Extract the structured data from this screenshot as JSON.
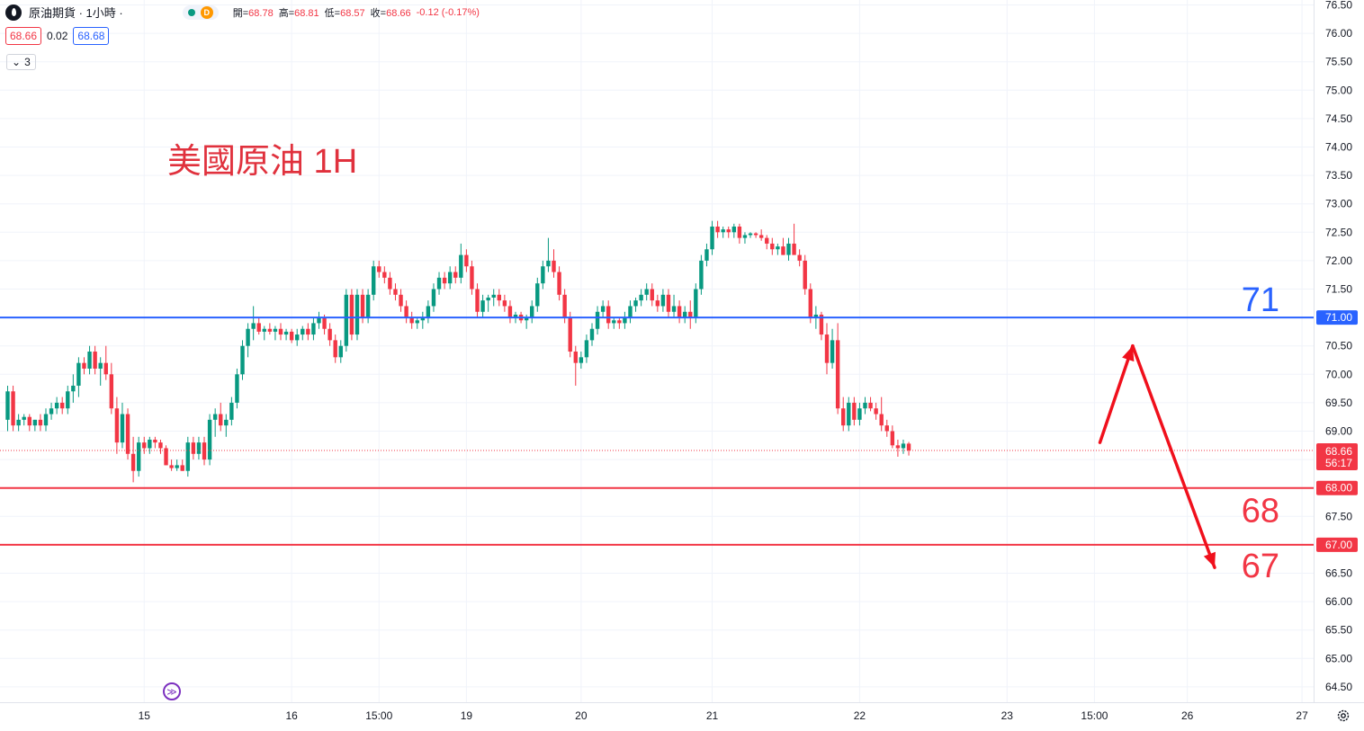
{
  "header": {
    "symbol_title": "原油期貨 · 1小時 ·",
    "delay_badge": "D",
    "ohlc": {
      "open_label": "開=",
      "open": "68.78",
      "high_label": "高=",
      "high": "68.81",
      "low_label": "低=",
      "low": "68.57",
      "close_label": "收=",
      "close": "68.66",
      "change": "-0.12 (-0.17%)"
    }
  },
  "trade": {
    "sell_price": "68.66",
    "spread": "0.02",
    "buy_price": "68.68"
  },
  "indicators": {
    "count": "3"
  },
  "annotation": {
    "title": "美國原油 1H"
  },
  "colors": {
    "up": "#089981",
    "down": "#f23645",
    "resistance": "#2962ff",
    "support": "#f23645",
    "arrow": "#f0101c"
  },
  "chart_data": {
    "type": "candlestick",
    "title": "美國原油 1H",
    "ylim": [
      64.3,
      76.6
    ],
    "y_ticks": [
      "64.50",
      "65.00",
      "65.50",
      "66.00",
      "66.50",
      "67.00",
      "67.50",
      "68.00",
      "68.50",
      "69.00",
      "69.50",
      "70.00",
      "70.50",
      "71.00",
      "71.50",
      "72.00",
      "72.50",
      "73.00",
      "73.50",
      "74.00",
      "74.50",
      "75.00",
      "75.50",
      "76.00",
      "76.50"
    ],
    "x_ticks": [
      {
        "label": "15",
        "bar": 25
      },
      {
        "label": "16",
        "bar": 52
      },
      {
        "label": "15:00",
        "bar": 68
      },
      {
        "label": "19",
        "bar": 84
      },
      {
        "label": "20",
        "bar": 105
      },
      {
        "label": "21",
        "bar": 129
      },
      {
        "label": "22",
        "bar": 156
      },
      {
        "label": "23",
        "bar": 183
      },
      {
        "label": "15:00",
        "bar": 199
      },
      {
        "label": "26",
        "bar": 216
      },
      {
        "label": "27",
        "bar": 237
      }
    ],
    "last_price": {
      "value": 68.66,
      "label": "68.66",
      "countdown": "56:17"
    },
    "horizontal_lines": [
      {
        "value": 71.0,
        "label": "71.00",
        "note": "71",
        "kind": "resistance"
      },
      {
        "value": 68.0,
        "label": "68.00",
        "note": "68",
        "kind": "support"
      },
      {
        "value": 67.0,
        "label": "67.00",
        "note": "67",
        "kind": "support"
      }
    ],
    "projection": [
      {
        "bar": 200,
        "value": 68.8
      },
      {
        "bar": 206,
        "value": 70.5
      },
      {
        "bar": 221,
        "value": 66.6
      }
    ],
    "ohlc_series": [
      [
        69.2,
        69.8,
        69.0,
        69.7
      ],
      [
        69.7,
        69.8,
        69.0,
        69.1
      ],
      [
        69.1,
        69.3,
        69.0,
        69.2
      ],
      [
        69.2,
        69.3,
        69.1,
        69.25
      ],
      [
        69.25,
        69.3,
        69.0,
        69.1
      ],
      [
        69.1,
        69.2,
        69.0,
        69.2
      ],
      [
        69.2,
        69.3,
        69.0,
        69.1
      ],
      [
        69.1,
        69.4,
        69.0,
        69.3
      ],
      [
        69.3,
        69.5,
        69.2,
        69.4
      ],
      [
        69.4,
        69.6,
        69.3,
        69.5
      ],
      [
        69.5,
        69.6,
        69.3,
        69.4
      ],
      [
        69.4,
        69.8,
        69.3,
        69.7
      ],
      [
        69.7,
        70.0,
        69.5,
        69.8
      ],
      [
        69.8,
        70.3,
        69.6,
        70.2
      ],
      [
        70.2,
        70.3,
        70.0,
        70.1
      ],
      [
        70.1,
        70.5,
        70.0,
        70.4
      ],
      [
        70.4,
        70.5,
        70.0,
        70.1
      ],
      [
        70.1,
        70.3,
        69.8,
        70.2
      ],
      [
        70.2,
        70.5,
        69.9,
        70.0
      ],
      [
        70.0,
        70.2,
        69.3,
        69.4
      ],
      [
        69.4,
        69.6,
        68.6,
        68.8
      ],
      [
        68.8,
        69.5,
        68.7,
        69.3
      ],
      [
        69.3,
        69.4,
        68.5,
        68.6
      ],
      [
        68.6,
        68.9,
        68.1,
        68.3
      ],
      [
        68.3,
        68.9,
        68.2,
        68.8
      ],
      [
        68.8,
        68.9,
        68.6,
        68.7
      ],
      [
        68.7,
        68.9,
        68.6,
        68.85
      ],
      [
        68.85,
        68.9,
        68.7,
        68.8
      ],
      [
        68.8,
        68.85,
        68.6,
        68.7
      ],
      [
        68.7,
        68.75,
        68.4,
        68.4
      ],
      [
        68.4,
        68.5,
        68.3,
        68.35
      ],
      [
        68.35,
        68.5,
        68.3,
        68.4
      ],
      [
        68.4,
        68.5,
        68.3,
        68.3
      ],
      [
        68.3,
        68.9,
        68.2,
        68.8
      ],
      [
        68.8,
        68.9,
        68.5,
        68.6
      ],
      [
        68.6,
        68.9,
        68.5,
        68.8
      ],
      [
        68.8,
        68.9,
        68.4,
        68.5
      ],
      [
        68.5,
        69.3,
        68.4,
        69.2
      ],
      [
        69.2,
        69.4,
        68.9,
        69.3
      ],
      [
        69.3,
        69.5,
        69.0,
        69.1
      ],
      [
        69.1,
        69.3,
        68.9,
        69.2
      ],
      [
        69.2,
        69.6,
        69.1,
        69.5
      ],
      [
        69.5,
        70.1,
        69.4,
        70.0
      ],
      [
        70.0,
        70.6,
        69.9,
        70.5
      ],
      [
        70.5,
        70.9,
        70.3,
        70.8
      ],
      [
        70.8,
        71.2,
        70.6,
        70.9
      ],
      [
        70.9,
        71.0,
        70.7,
        70.75
      ],
      [
        70.75,
        70.85,
        70.6,
        70.8
      ],
      [
        70.8,
        70.9,
        70.7,
        70.75
      ],
      [
        70.75,
        70.85,
        70.6,
        70.8
      ],
      [
        70.8,
        70.9,
        70.6,
        70.7
      ],
      [
        70.7,
        70.8,
        70.6,
        70.75
      ],
      [
        70.75,
        70.8,
        70.55,
        70.6
      ],
      [
        70.6,
        70.8,
        70.5,
        70.7
      ],
      [
        70.7,
        70.85,
        70.6,
        70.8
      ],
      [
        70.8,
        70.9,
        70.6,
        70.7
      ],
      [
        70.7,
        71.0,
        70.6,
        70.9
      ],
      [
        70.9,
        71.1,
        70.8,
        71.0
      ],
      [
        71.0,
        71.05,
        70.7,
        70.8
      ],
      [
        70.8,
        70.9,
        70.5,
        70.6
      ],
      [
        70.6,
        70.7,
        70.2,
        70.3
      ],
      [
        70.3,
        70.6,
        70.2,
        70.5
      ],
      [
        70.5,
        71.5,
        70.4,
        71.4
      ],
      [
        71.4,
        71.5,
        70.6,
        70.7
      ],
      [
        70.7,
        71.5,
        70.6,
        71.4
      ],
      [
        71.4,
        71.5,
        70.9,
        71.0
      ],
      [
        71.0,
        71.5,
        70.9,
        71.4
      ],
      [
        71.4,
        72.0,
        71.3,
        71.9
      ],
      [
        71.9,
        72.0,
        71.7,
        71.8
      ],
      [
        71.8,
        71.9,
        71.6,
        71.7
      ],
      [
        71.7,
        71.8,
        71.4,
        71.5
      ],
      [
        71.5,
        71.6,
        71.3,
        71.4
      ],
      [
        71.4,
        71.5,
        71.1,
        71.2
      ],
      [
        71.2,
        71.3,
        70.9,
        71.0
      ],
      [
        71.0,
        71.1,
        70.8,
        70.9
      ],
      [
        70.9,
        71.0,
        70.8,
        70.95
      ],
      [
        70.95,
        71.1,
        70.8,
        71.0
      ],
      [
        71.0,
        71.3,
        70.9,
        71.2
      ],
      [
        71.2,
        71.6,
        71.1,
        71.5
      ],
      [
        71.5,
        71.8,
        71.4,
        71.7
      ],
      [
        71.7,
        71.8,
        71.5,
        71.6
      ],
      [
        71.6,
        71.9,
        71.5,
        71.8
      ],
      [
        71.8,
        71.9,
        71.6,
        71.7
      ],
      [
        71.7,
        72.3,
        71.6,
        72.1
      ],
      [
        72.1,
        72.2,
        71.8,
        71.9
      ],
      [
        71.9,
        72.0,
        71.4,
        71.5
      ],
      [
        71.5,
        71.6,
        71.0,
        71.1
      ],
      [
        71.1,
        71.4,
        71.0,
        71.3
      ],
      [
        71.3,
        71.4,
        71.1,
        71.35
      ],
      [
        71.35,
        71.5,
        71.2,
        71.4
      ],
      [
        71.4,
        71.5,
        71.2,
        71.3
      ],
      [
        71.3,
        71.4,
        71.1,
        71.2
      ],
      [
        71.2,
        71.3,
        70.9,
        71.0
      ],
      [
        71.0,
        71.1,
        70.9,
        71.05
      ],
      [
        71.05,
        71.1,
        70.9,
        70.95
      ],
      [
        70.95,
        71.05,
        70.8,
        71.0
      ],
      [
        71.0,
        71.3,
        70.9,
        71.2
      ],
      [
        71.2,
        71.7,
        71.1,
        71.6
      ],
      [
        71.6,
        72.0,
        71.5,
        71.9
      ],
      [
        71.9,
        72.4,
        71.8,
        72.0
      ],
      [
        72.0,
        72.2,
        71.7,
        71.8
      ],
      [
        71.8,
        71.9,
        71.3,
        71.4
      ],
      [
        71.4,
        71.5,
        70.9,
        71.0
      ],
      [
        71.0,
        71.1,
        70.3,
        70.4
      ],
      [
        70.4,
        70.5,
        69.8,
        70.2
      ],
      [
        70.2,
        70.4,
        70.1,
        70.3
      ],
      [
        70.3,
        70.7,
        70.2,
        70.6
      ],
      [
        70.6,
        70.9,
        70.5,
        70.8
      ],
      [
        70.8,
        71.2,
        70.7,
        71.1
      ],
      [
        71.1,
        71.3,
        71.0,
        71.2
      ],
      [
        71.2,
        71.3,
        70.8,
        70.9
      ],
      [
        70.9,
        71.0,
        70.8,
        70.95
      ],
      [
        70.95,
        71.0,
        70.8,
        70.9
      ],
      [
        70.9,
        71.1,
        70.8,
        71.0
      ],
      [
        71.0,
        71.3,
        70.9,
        71.2
      ],
      [
        71.2,
        71.35,
        71.1,
        71.3
      ],
      [
        71.3,
        71.5,
        71.2,
        71.4
      ],
      [
        71.4,
        71.6,
        71.3,
        71.5
      ],
      [
        71.5,
        71.6,
        71.2,
        71.3
      ],
      [
        71.3,
        71.4,
        71.1,
        71.2
      ],
      [
        71.2,
        71.5,
        71.1,
        71.4
      ],
      [
        71.4,
        71.5,
        71.0,
        71.1
      ],
      [
        71.1,
        71.4,
        71.0,
        71.2
      ],
      [
        71.2,
        71.3,
        70.9,
        71.0
      ],
      [
        71.0,
        71.2,
        70.9,
        71.1
      ],
      [
        71.1,
        71.3,
        70.8,
        71.0
      ],
      [
        71.0,
        71.6,
        70.9,
        71.5
      ],
      [
        71.5,
        72.1,
        71.4,
        72.0
      ],
      [
        72.0,
        72.3,
        71.9,
        72.2
      ],
      [
        72.2,
        72.7,
        72.1,
        72.6
      ],
      [
        72.6,
        72.7,
        72.4,
        72.5
      ],
      [
        72.5,
        72.6,
        72.4,
        72.55
      ],
      [
        72.55,
        72.6,
        72.4,
        72.5
      ],
      [
        72.5,
        72.65,
        72.4,
        72.6
      ],
      [
        72.6,
        72.65,
        72.3,
        72.4
      ],
      [
        72.4,
        72.5,
        72.3,
        72.45
      ],
      [
        72.45,
        72.5,
        72.4,
        72.48
      ],
      [
        72.48,
        72.5,
        72.4,
        72.45
      ],
      [
        72.45,
        72.55,
        72.35,
        72.4
      ],
      [
        72.4,
        72.45,
        72.2,
        72.3
      ],
      [
        72.3,
        72.4,
        72.1,
        72.2
      ],
      [
        72.2,
        72.3,
        72.1,
        72.25
      ],
      [
        72.25,
        72.4,
        72.1,
        72.1
      ],
      [
        72.1,
        72.4,
        72.0,
        72.3
      ],
      [
        72.3,
        72.65,
        72.2,
        72.1
      ],
      [
        72.1,
        72.2,
        71.9,
        72.0
      ],
      [
        72.0,
        72.1,
        71.4,
        71.5
      ],
      [
        71.5,
        71.6,
        70.9,
        71.0
      ],
      [
        71.0,
        71.2,
        70.8,
        71.05
      ],
      [
        71.05,
        71.1,
        70.6,
        70.7
      ],
      [
        70.7,
        70.9,
        70.0,
        70.2
      ],
      [
        70.2,
        70.8,
        70.1,
        70.6
      ],
      [
        70.6,
        70.9,
        69.3,
        69.4
      ],
      [
        69.4,
        69.6,
        69.0,
        69.1
      ],
      [
        69.1,
        69.6,
        69.0,
        69.5
      ],
      [
        69.5,
        69.6,
        69.1,
        69.2
      ],
      [
        69.2,
        69.5,
        69.1,
        69.4
      ],
      [
        69.4,
        69.6,
        69.3,
        69.5
      ],
      [
        69.5,
        69.6,
        69.35,
        69.4
      ],
      [
        69.4,
        69.5,
        69.2,
        69.3
      ],
      [
        69.3,
        69.6,
        69.0,
        69.1
      ],
      [
        69.1,
        69.2,
        68.9,
        69.0
      ],
      [
        69.0,
        69.1,
        68.7,
        68.75
      ],
      [
        68.75,
        68.85,
        68.55,
        68.7
      ],
      [
        68.7,
        68.85,
        68.6,
        68.78
      ],
      [
        68.78,
        68.81,
        68.57,
        68.66
      ]
    ]
  }
}
